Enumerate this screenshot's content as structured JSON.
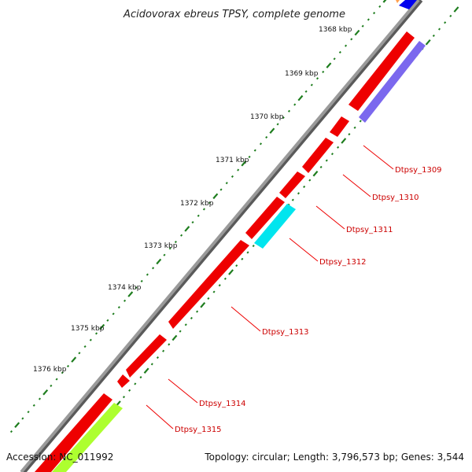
{
  "title": "Acidovorax ebreus TPSY, complete genome",
  "footer": {
    "accession": "Accession: NC_011992",
    "summary": "Topology: circular; Length: 3,796,573 bp; Genes: 3,544"
  },
  "kbp_ticks": [
    "1368 kbp",
    "1369 kbp",
    "1370 kbp",
    "1371 kbp",
    "1372 kbp",
    "1373 kbp",
    "1374 kbp",
    "1375 kbp",
    "1376 kbp"
  ],
  "gene_labels": [
    "Dtpsy_1309",
    "Dtpsy_1310",
    "Dtpsy_1311",
    "Dtpsy_1312",
    "Dtpsy_1313",
    "Dtpsy_1314",
    "Dtpsy_1315"
  ],
  "colors": {
    "backbone": "#8c8c8c",
    "cds_red": "#ee0000",
    "purple": "#7b68ee",
    "cyan": "#00e5ee",
    "green": "#adff2f",
    "blue": "#0000ee",
    "ruler": "#1e7d1e",
    "label": "#cc0000"
  }
}
